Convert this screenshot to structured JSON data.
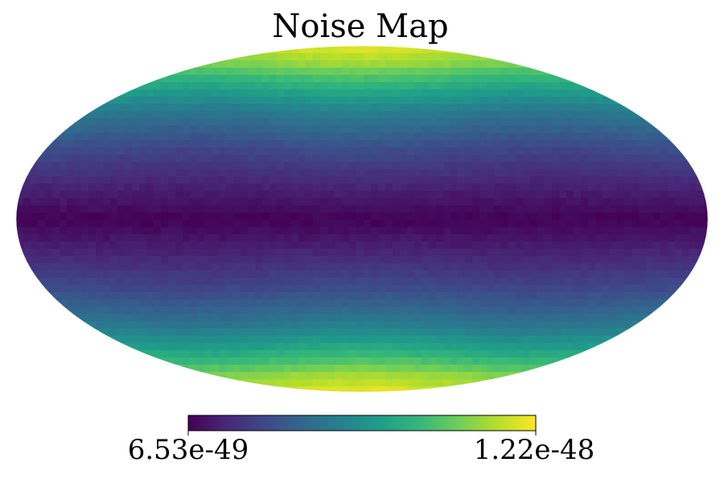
{
  "chart_data": {
    "type": "heatmap",
    "projection": "mollweide",
    "title": "Noise Map",
    "colormap": "viridis",
    "colormap_stops": [
      "#440154",
      "#482878",
      "#3e4989",
      "#31688e",
      "#26828e",
      "#1f9e89",
      "#35b779",
      "#6ece58",
      "#b5de2b",
      "#fde725"
    ],
    "colorbar": {
      "min": 6.53e-49,
      "max": 1.22e-48,
      "min_label": "6.53e-49",
      "max_label": "1.22e-48",
      "orientation": "horizontal",
      "placement": "bottom"
    },
    "latitude_profile": {
      "latitude_deg": [
        -90,
        -75,
        -60,
        -45,
        -30,
        -15,
        0,
        15,
        30,
        45,
        60,
        75,
        90
      ],
      "normalized_level": [
        0.95,
        0.85,
        0.62,
        0.4,
        0.24,
        0.12,
        0.02,
        0.12,
        0.24,
        0.4,
        0.62,
        0.85,
        0.95
      ]
    },
    "grid": false
  }
}
